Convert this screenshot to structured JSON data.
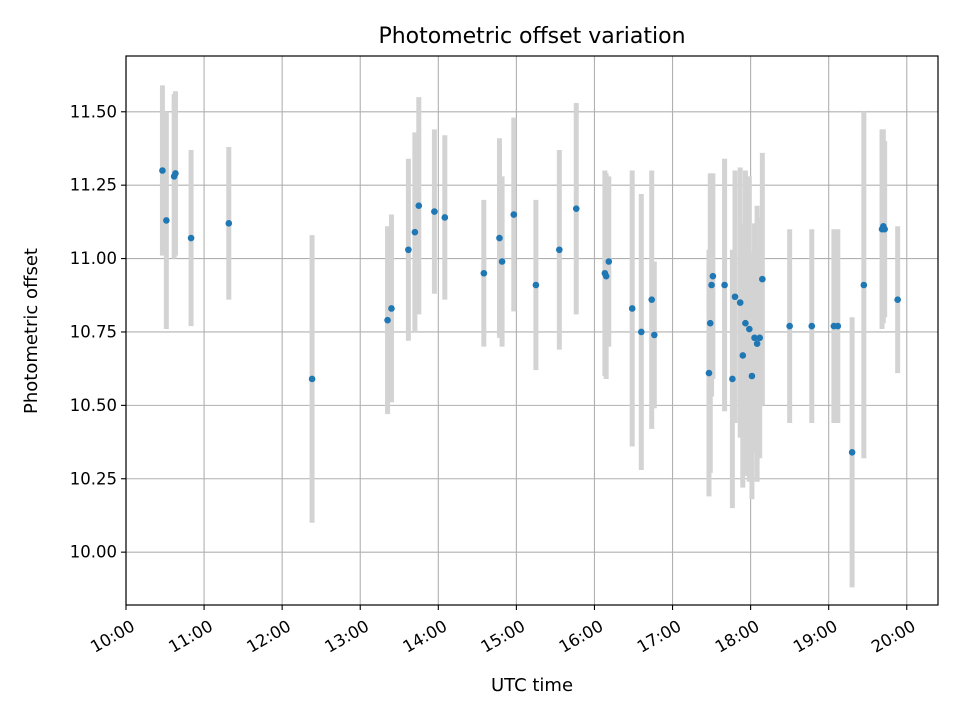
{
  "chart_data": {
    "type": "scatter",
    "title": "Photometric offset variation",
    "xlabel": "UTC time",
    "ylabel": "Photometric offset",
    "xlim": [
      "10:00",
      "20:24"
    ],
    "ylim": [
      9.82,
      11.69
    ],
    "xticks": [
      "10:00",
      "11:00",
      "12:00",
      "13:00",
      "14:00",
      "15:00",
      "16:00",
      "17:00",
      "18:00",
      "19:00",
      "20:00"
    ],
    "yticks": [
      "10.00",
      "10.25",
      "10.50",
      "10.75",
      "11.00",
      "11.25",
      "11.50"
    ],
    "grid": true,
    "colors": {
      "point": "#1f77b4",
      "errorbar": "#d3d3d3",
      "grid": "#b0b0b0"
    },
    "series": [
      {
        "x": [
          "10:28",
          "10:31",
          "10:37",
          "10:38",
          "10:50",
          "11:19",
          "12:23",
          "13:21",
          "13:24",
          "13:37",
          "13:42",
          "13:45",
          "13:57",
          "14:05",
          "14:35",
          "14:47",
          "14:49",
          "14:58",
          "15:15",
          "15:33",
          "15:46",
          "16:08",
          "16:09",
          "16:11",
          "16:29",
          "16:36",
          "16:44",
          "16:46",
          "17:28",
          "17:29",
          "17:30",
          "17:31",
          "17:40",
          "17:46",
          "17:48",
          "17:52",
          "17:54",
          "17:56",
          "17:59",
          "18:01",
          "18:03",
          "18:05",
          "18:07",
          "18:09",
          "18:30",
          "18:47",
          "19:04",
          "19:07",
          "19:18",
          "19:27",
          "19:41",
          "19:42",
          "19:43",
          "19:53"
        ],
        "values": [
          11.3,
          11.13,
          11.28,
          11.29,
          11.07,
          11.12,
          10.59,
          10.79,
          10.83,
          11.03,
          11.09,
          11.18,
          11.16,
          11.14,
          10.95,
          11.07,
          10.99,
          11.15,
          10.91,
          11.03,
          11.17,
          10.95,
          10.94,
          10.99,
          10.83,
          10.75,
          10.86,
          10.74,
          10.61,
          10.78,
          10.91,
          10.94,
          10.91,
          10.59,
          10.87,
          10.85,
          10.67,
          10.78,
          10.76,
          10.6,
          10.73,
          10.71,
          10.73,
          10.93,
          10.77,
          10.77,
          10.77,
          10.77,
          10.34,
          10.91,
          11.1,
          11.11,
          11.1,
          10.86
        ],
        "errors": [
          0.29,
          0.37,
          0.28,
          0.28,
          0.3,
          0.26,
          0.49,
          0.32,
          0.32,
          0.31,
          0.34,
          0.37,
          0.28,
          0.28,
          0.25,
          0.34,
          0.29,
          0.33,
          0.29,
          0.34,
          0.36,
          0.35,
          0.35,
          0.29,
          0.47,
          0.47,
          0.44,
          0.25,
          0.42,
          0.51,
          0.38,
          0.35,
          0.43,
          0.44,
          0.43,
          0.46,
          0.45,
          0.52,
          0.52,
          0.42,
          0.39,
          0.47,
          0.41,
          0.43,
          0.33,
          0.33,
          0.33,
          0.33,
          0.46,
          0.59,
          0.34,
          0.33,
          0.3,
          0.25
        ]
      }
    ]
  }
}
